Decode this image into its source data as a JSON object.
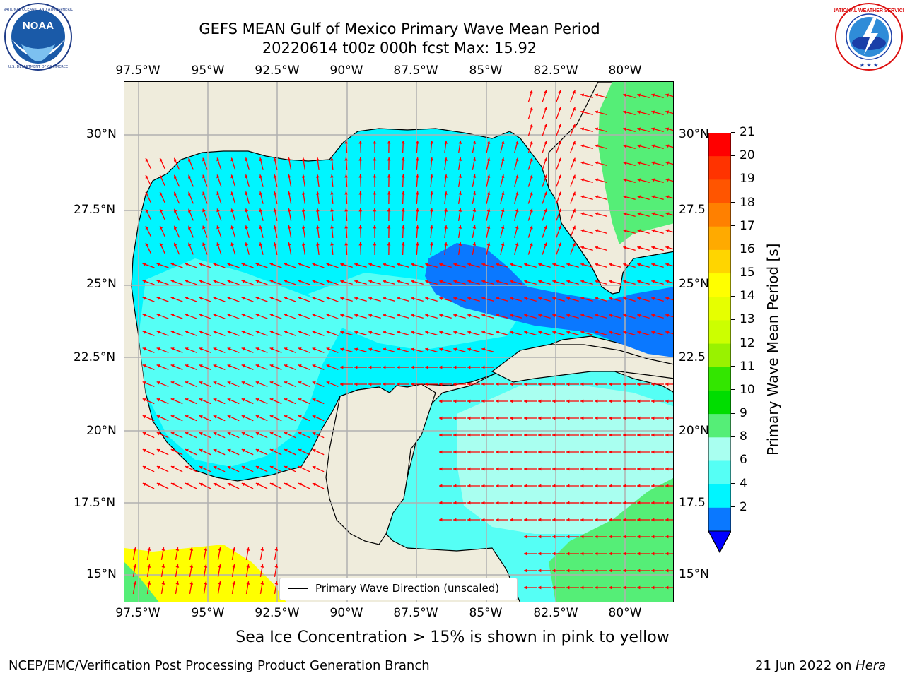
{
  "header": {
    "title_line1": "GEFS MEAN Gulf of Mexico Primary Wave Mean Period",
    "title_line2": "20220614 t00z 000h fcst   Max: 15.92"
  },
  "logos": {
    "left": {
      "icon": "noaa-logo",
      "text": "NOAA",
      "ring_text": "NATIONAL OCEANIC AND ATMOSPHERIC ADMINISTRATION · U.S. DEPARTMENT OF COMMERCE"
    },
    "right": {
      "icon": "nws-logo",
      "ring_text": "NATIONAL WEATHER SERVICE"
    }
  },
  "map": {
    "lon_labels": [
      "97.5°W",
      "95°W",
      "92.5°W",
      "90°W",
      "87.5°W",
      "85°W",
      "82.5°W",
      "80°W"
    ],
    "lat_labels_left": [
      "30°N",
      "27.5°N",
      "25°N",
      "22.5°N",
      "20°N",
      "17.5°N",
      "15°N"
    ],
    "lat_labels_right": [
      "30°N",
      "27.5",
      "25°N",
      "22.5",
      "20°N",
      "17.5",
      "15°N"
    ],
    "legend_label": "Primary Wave Direction (unscaled)",
    "grid": true,
    "land_color": "#efecdc",
    "arrow_color": "#ff0000"
  },
  "colorbar": {
    "title": "Primary Wave Mean Period [s]",
    "ticks": [
      "21",
      "20",
      "19",
      "18",
      "17",
      "16",
      "15",
      "14",
      "13",
      "12",
      "11",
      "10",
      "9",
      "8",
      "6",
      "4",
      "2"
    ],
    "colors": [
      "#ff0000",
      "#ff3300",
      "#ff5500",
      "#ff8000",
      "#ffaa00",
      "#ffd500",
      "#ffff00",
      "#e6ff00",
      "#ccff00",
      "#99f200",
      "#33e600",
      "#00dd00",
      "#55ee77",
      "#a9fff0",
      "#55fff5",
      "#00f5ff",
      "#0a78ff"
    ],
    "under_color": "#0000ff"
  },
  "footer": {
    "note": "Sea Ice Concentration > 15% is shown in pink to yellow",
    "credit": "NCEP/EMC/Verification Post Processing Product Generation Branch",
    "date": "21 Jun 2022 on",
    "host": "Hera"
  }
}
